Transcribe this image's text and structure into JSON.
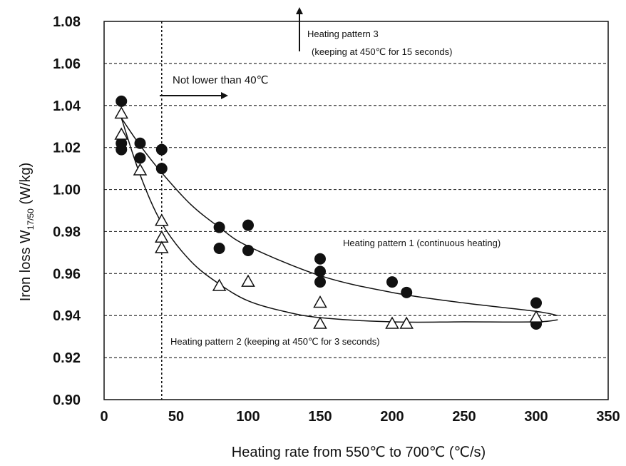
{
  "chart_data": {
    "type": "scatter",
    "xlabel": "Heating rate from 550℃  to 700℃  (℃/s)",
    "ylabel_main": "Iron loss W",
    "ylabel_sub": "17/50",
    "ylabel_unit": " (W/kg)",
    "xlim": [
      0,
      350
    ],
    "ylim": [
      0.9,
      1.08
    ],
    "x_ticks": [
      "0",
      "50",
      "100",
      "150",
      "200",
      "250",
      "300",
      "350"
    ],
    "x_tick_values": [
      0,
      50,
      100,
      150,
      200,
      250,
      300,
      350
    ],
    "y_ticks": [
      "0.90",
      "0.92",
      "0.94",
      "0.96",
      "0.98",
      "1.00",
      "1.02",
      "1.04",
      "1.06",
      "1.08"
    ],
    "y_tick_values": [
      0.9,
      0.92,
      0.94,
      0.96,
      0.98,
      1.0,
      1.02,
      1.04,
      1.06,
      1.08
    ],
    "grid": "horizontal-dashed",
    "vline": {
      "x": 40
    },
    "series": [
      {
        "marker": "filled-circle",
        "x": [
          12,
          12,
          12,
          25,
          25,
          40,
          40,
          80,
          80,
          100,
          100,
          150,
          150,
          150,
          200,
          210,
          300,
          300
        ],
        "y": [
          1.042,
          1.022,
          1.019,
          1.022,
          1.015,
          1.019,
          1.01,
          0.982,
          0.972,
          0.983,
          0.971,
          0.967,
          0.961,
          0.956,
          0.956,
          0.951,
          0.946,
          0.936
        ]
      },
      {
        "marker": "open-triangle",
        "x": [
          12,
          12,
          25,
          40,
          40,
          40,
          80,
          100,
          150,
          150,
          200,
          210,
          300
        ],
        "y": [
          1.036,
          1.026,
          1.009,
          0.985,
          0.977,
          0.972,
          0.954,
          0.956,
          0.946,
          0.936,
          0.936,
          0.936,
          0.939
        ]
      }
    ],
    "fit_curves": [
      {
        "x": [
          12,
          25,
          40,
          60,
          80,
          100,
          150,
          200,
          250,
          300,
          315
        ],
        "y": [
          1.034,
          1.021,
          1.008,
          0.993,
          0.982,
          0.973,
          0.959,
          0.951,
          0.946,
          0.942,
          0.94
        ]
      },
      {
        "x": [
          12,
          25,
          40,
          60,
          80,
          100,
          125,
          150,
          200,
          250,
          300,
          315
        ],
        "y": [
          1.034,
          1.007,
          0.984,
          0.966,
          0.955,
          0.947,
          0.942,
          0.939,
          0.937,
          0.937,
          0.937,
          0.938
        ]
      }
    ],
    "annotations": {
      "pattern3_line1": "Heating pattern 3",
      "pattern3_line2": "(keeping at 450℃ for 15 seconds)",
      "not_lower": "Not lower than 40℃",
      "pattern1": "Heating pattern 1 (continuous heating)",
      "pattern2": "Heating pattern 2 (keeping at 450℃ for 3 seconds)"
    }
  }
}
